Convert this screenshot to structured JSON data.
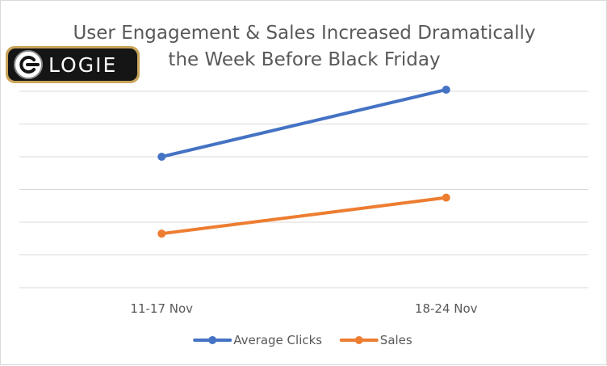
{
  "logo": {
    "text": "LOGIE"
  },
  "chart_data": {
    "type": "line",
    "title": "User Engagement & Sales Increased Dramatically the Week Before Black Friday",
    "title_lines": [
      "User Engagement & Sales Increased Dramatically",
      "the Week Before Black Friday"
    ],
    "categories": [
      "11-17 Nov",
      "18-24 Nov"
    ],
    "xlabel": "",
    "ylabel": "",
    "y_tick_labels_shown": false,
    "gridlines": "horizontal",
    "ylim": [
      0,
      6
    ],
    "series": [
      {
        "name": "Average Clicks",
        "values": [
          4.0,
          6.05
        ],
        "color": "#4472c4"
      },
      {
        "name": "Sales",
        "values": [
          1.65,
          2.75
        ],
        "color": "#ed7d31"
      }
    ],
    "legend_position": "bottom"
  }
}
